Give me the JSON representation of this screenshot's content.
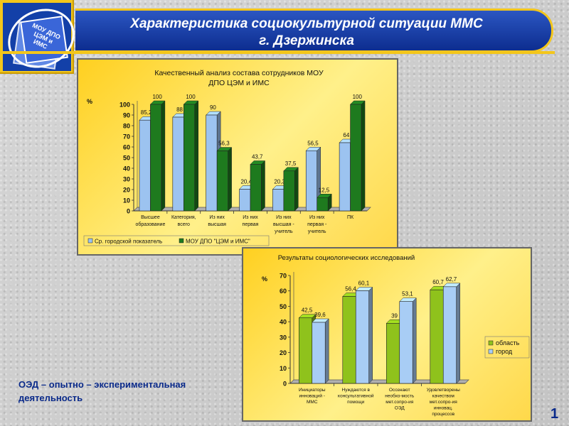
{
  "slide": {
    "title_line1": "Характеристика социокультурной  ситуации  ММС",
    "title_line2": "г. Дзержинска",
    "logo_text_line1": "МОУ ДПО",
    "logo_text_line2": "ЦЭМ и ИМС",
    "note_line1": "ОЭД – опытно – экспериментальная",
    "note_line2": "деятельность",
    "page_number": "1"
  },
  "chart_data": [
    {
      "type": "bar",
      "title": "Качественный анализ состава сотрудников МОУ ДПО ЦЭМ и ИМС",
      "title_line1": "Качественный анализ состава сотрудников МОУ",
      "title_line2": "ДПО ЦЭМ и ИМС",
      "ylabel": "%",
      "ylim": [
        0,
        100
      ],
      "yticks": [
        0,
        10,
        20,
        30,
        40,
        50,
        60,
        70,
        80,
        90,
        100
      ],
      "grid": false,
      "legend": "bottom",
      "categories": [
        [
          "Высшее",
          "образование"
        ],
        [
          "Категория,",
          "всего"
        ],
        [
          "Из них",
          "высшая"
        ],
        [
          "Из них",
          "первая"
        ],
        [
          "Из них",
          "высшая -",
          "учитель"
        ],
        [
          "Из них",
          "первая -",
          "учитель"
        ],
        [
          "ПК"
        ]
      ],
      "series": [
        {
          "name": "Ср. городской показатель",
          "color": "#9cc3f0",
          "values": [
            85.2,
            88,
            90,
            20.4,
            20.3,
            56.5,
            64
          ],
          "labels": [
            "85,2",
            "88",
            "90",
            "20,4",
            "20,3",
            "56,5",
            "64"
          ]
        },
        {
          "name": "МОУ ДПО \"ЦЭМ и ИМС\"",
          "color": "#1e7a1e",
          "values": [
            100,
            100,
            56.3,
            43.7,
            37.5,
            12.5,
            100
          ],
          "labels": [
            "100",
            "100",
            "56,3",
            "43,7",
            "37,5",
            "12,5",
            "100"
          ]
        }
      ]
    },
    {
      "type": "bar",
      "title": "Результаты социологических исследований",
      "ylabel": "%",
      "ylim": [
        0,
        70
      ],
      "yticks": [
        0,
        10,
        20,
        30,
        40,
        50,
        60,
        70
      ],
      "grid": false,
      "legend": "right",
      "categories": [
        [
          "Инициаторы",
          "инноваций -",
          "ММС"
        ],
        [
          "Нуждаются в",
          "консультативной",
          "помощи"
        ],
        [
          "Осознают",
          "необхо-мость",
          "мет.сопро-ия",
          "ОЭД"
        ],
        [
          "Удовлетворены",
          "качеством",
          "мет.сопро-ия",
          "инновац.",
          "процессов"
        ]
      ],
      "series": [
        {
          "name": "область",
          "color": "#8fc21c",
          "values": [
            42.5,
            56.4,
            39,
            60.7
          ],
          "labels": [
            "42,5",
            "56,4",
            "39",
            "60,7"
          ]
        },
        {
          "name": "город",
          "color": "#a8cdf5",
          "values": [
            39.6,
            60.1,
            53.1,
            62.7
          ],
          "labels": [
            "39,6",
            "60,1",
            "53,1",
            "62,7"
          ]
        }
      ]
    }
  ]
}
